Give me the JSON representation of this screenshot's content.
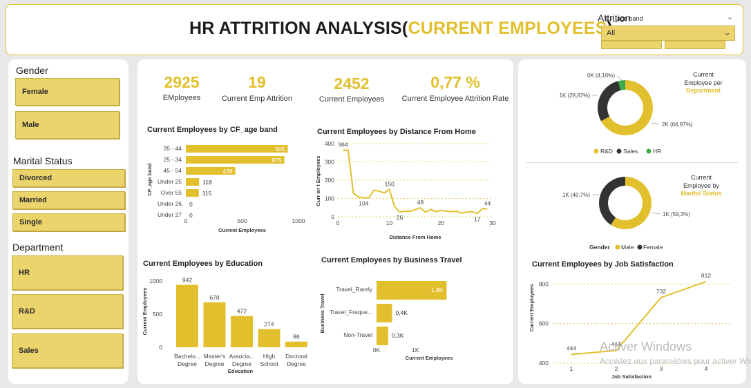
{
  "header": {
    "title_main": "HR ATTRITION ANALYSIS(",
    "title_accent": "CURRENT EMPLOYEES",
    "title_end": ")"
  },
  "filters": {
    "attrition_label": "Attrition",
    "cf_age_band_label": "CF_age band",
    "selected_value": "All"
  },
  "slicers": {
    "gender_label": "Gender",
    "gender_options": [
      "Female",
      "Male"
    ],
    "marital_label": "Marital Status",
    "marital_options": [
      "Divorced",
      "Married",
      "Single"
    ],
    "department_label": "Department",
    "department_options": [
      "HR",
      "R&D",
      "Sales"
    ]
  },
  "kpis": [
    {
      "value": "2925",
      "label": "EMployees"
    },
    {
      "value": "19",
      "label": "Current Emp Attrition"
    },
    {
      "value": "2452",
      "label": "Current Employees"
    },
    {
      "value": "0,77 %",
      "label": "Current Employee Attrition Rate"
    }
  ],
  "watermark": {
    "line1": "Activer Windows",
    "line2": "Accédez aux paramètres pour activer Windows."
  },
  "chart_data": [
    {
      "type": "bar",
      "orientation": "horizontal",
      "title": "Current Employees by CF_age band",
      "xlabel": "Current Employees",
      "ylabel": "CF_age band",
      "categories": [
        "35 - 44",
        "25 - 34",
        "45 - 54",
        "Under 25",
        "Over 55",
        "Under 26",
        "Under 27"
      ],
      "values": [
        905,
        875,
        439,
        118,
        115,
        0,
        0
      ],
      "xticks": [
        "0",
        "500",
        "1000"
      ],
      "xlim": [
        0,
        1000
      ]
    },
    {
      "type": "line",
      "title": "Current Employees by Distance From Home",
      "xlabel": "Distance From Home",
      "ylabel": "Curr en t Employees",
      "x": [
        1,
        2,
        3,
        4,
        5,
        6,
        7,
        8,
        9,
        10,
        11,
        12,
        13,
        14,
        15,
        16,
        17,
        18,
        19,
        20,
        21,
        22,
        23,
        24,
        25,
        26,
        27,
        28,
        29
      ],
      "y": [
        364,
        364,
        130,
        108,
        104,
        104,
        145,
        140,
        130,
        150,
        55,
        26,
        30,
        30,
        40,
        49,
        25,
        40,
        28,
        35,
        30,
        28,
        30,
        20,
        25,
        28,
        17,
        44,
        44
      ],
      "labels": [
        {
          "x": 1,
          "y": 364,
          "text": "364"
        },
        {
          "x": 5,
          "y": 104,
          "text": "104"
        },
        {
          "x": 10,
          "y": 150,
          "text": "150"
        },
        {
          "x": 12,
          "y": 26,
          "text": "26"
        },
        {
          "x": 16,
          "y": 49,
          "text": "49"
        },
        {
          "x": 27,
          "y": 17,
          "text": "17"
        },
        {
          "x": 29,
          "y": 44,
          "text": "44"
        }
      ],
      "yticks": [
        "0",
        "100",
        "200",
        "300",
        "400"
      ],
      "xticks": [
        "0",
        "10",
        "20",
        "30"
      ],
      "xlim": [
        0,
        30
      ],
      "ylim": [
        0,
        400
      ]
    },
    {
      "type": "bar",
      "title": "Current Employees by Education",
      "xlabel": "Education",
      "ylabel": "Current Employees",
      "categories": [
        "Bachelo... Degree",
        "Master's Degree",
        "Associa... Degree",
        "High School",
        "Doctoral Degree"
      ],
      "cat_line1": [
        "Bachelo...",
        "Master's",
        "Associa...",
        "High",
        "Doctoral"
      ],
      "cat_line2": [
        "Degree",
        "Degree",
        "Degree",
        "School",
        "Degree"
      ],
      "values": [
        942,
        678,
        472,
        274,
        86
      ],
      "yticks": [
        "0",
        "500",
        "1000"
      ],
      "ylim": [
        0,
        1000
      ]
    },
    {
      "type": "bar",
      "orientation": "horizontal",
      "title": "Current Employees by Business Travel",
      "xlabel": "Current Employees",
      "ylabel": "Business Travel",
      "categories": [
        "Travel_Rarely",
        "Travel_Freque...",
        "Non-Travel"
      ],
      "values": [
        1800,
        400,
        300
      ],
      "value_labels": [
        "1,8K",
        "0,4K",
        "0,3K"
      ],
      "xticks": [
        "0K",
        "1K"
      ],
      "xlim": [
        0,
        2200
      ]
    },
    {
      "type": "pie",
      "donut": true,
      "title_line1": "Current",
      "title_line2": "Employee per",
      "title_accent": "Department",
      "slices": [
        {
          "name": "R&D",
          "value": 66.97,
          "label": "2K (66,97%)",
          "color": "#e2bf2c"
        },
        {
          "name": "Sales",
          "value": 28.87,
          "label": "1K (28,87%)",
          "color": "#333333"
        },
        {
          "name": "HR",
          "value": 4.16,
          "label": "0K (4,16%)",
          "color": "#3ea84c"
        }
      ]
    },
    {
      "type": "pie",
      "donut": true,
      "title_line1": "Current",
      "title_line2": "Employee by",
      "title_accent": "Marital Status",
      "legend_title": "Gender",
      "slices": [
        {
          "name": "Male",
          "value": 59.3,
          "label": "1K (59,3%)",
          "color": "#e2bf2c"
        },
        {
          "name": "Female",
          "value": 40.7,
          "label": "1K (40,7%)",
          "color": "#333333"
        }
      ]
    },
    {
      "type": "line",
      "title": "Current Employees by Job Satisfaction",
      "xlabel": "Job Satisfaction",
      "ylabel": "Current Employees",
      "x": [
        1,
        2,
        3,
        4
      ],
      "y": [
        444,
        464,
        732,
        812
      ],
      "labels": [
        "444",
        "464",
        "732",
        "812"
      ],
      "yticks": [
        "400",
        "600",
        "800"
      ],
      "xticks": [
        "1",
        "2",
        "3",
        "4"
      ],
      "ylim": [
        400,
        850
      ]
    }
  ]
}
